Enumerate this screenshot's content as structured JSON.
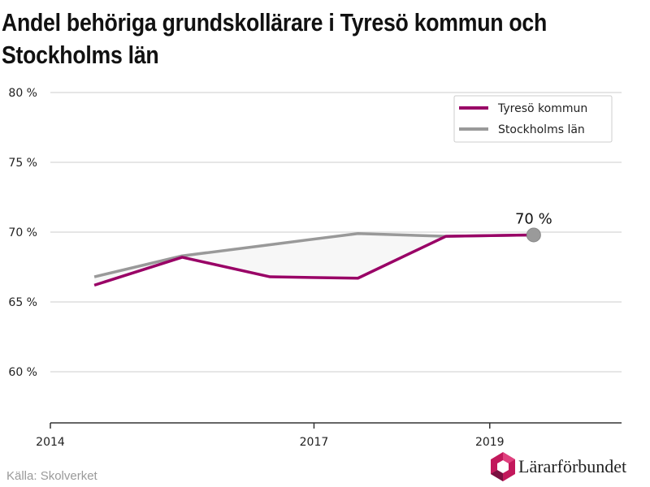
{
  "title": "Andel behöriga grundskollärare i Tyresö kommun och Stockholms län",
  "source": "Källa: Skolverket",
  "brand": {
    "name": "Lärarförbundet",
    "icon": "lararforbundet-logo-icon"
  },
  "colors": {
    "tyreso": "#990066",
    "stockholm": "#999999",
    "grid": "#dddddd",
    "axis": "#333333",
    "fill": "#f7f7f7"
  },
  "chart_data": {
    "type": "line",
    "x": [
      2014.5,
      2015.5,
      2016.5,
      2017.5,
      2018.5,
      2019.5
    ],
    "series": [
      {
        "name": "Tyresö kommun",
        "values": [
          66.2,
          68.2,
          66.8,
          66.7,
          69.7,
          69.8
        ]
      },
      {
        "name": "Stockholms län",
        "values": [
          66.8,
          68.3,
          69.1,
          69.9,
          69.7,
          69.8
        ]
      }
    ],
    "xlim": [
      2014,
      2020.5
    ],
    "ylim": [
      55.5,
      82
    ],
    "yticks": [
      60,
      65,
      70,
      75,
      80
    ],
    "ytick_labels": [
      "60 %",
      "65 %",
      "70 %",
      "75 %",
      "80 %"
    ],
    "xticks": [
      2014,
      2017,
      2019
    ],
    "xtick_labels": [
      "2014",
      "2017",
      "2019"
    ],
    "end_label": "70 %",
    "legend": "top-right",
    "grid": true
  }
}
